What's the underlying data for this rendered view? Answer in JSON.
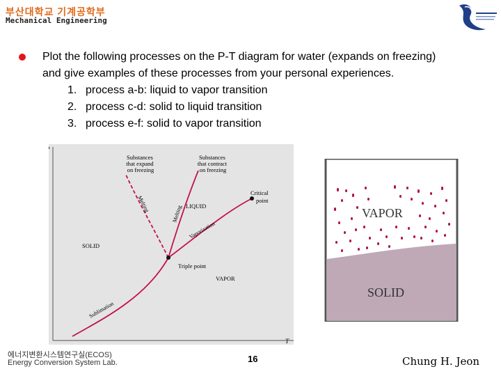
{
  "header": {
    "korean_title": "부산대학교 기계공학부",
    "english_title": "Mechanical Engineering"
  },
  "main": {
    "intro_line1": "Plot the following processes on the P-T diagram for water (expands on freezing)",
    "intro_line2": "and give examples of these processes from your personal experiences.",
    "items": [
      {
        "num": "1.",
        "text": "process a-b: liquid to vapor transition"
      },
      {
        "num": "2.",
        "text": "process c-d: solid to liquid transition"
      },
      {
        "num": "3.",
        "text": "process e-f: solid to vapor transition"
      }
    ]
  },
  "diagram": {
    "axis_p": "P",
    "axis_t": "T",
    "expand_note": [
      "Substances",
      "that expand",
      "on freezing"
    ],
    "contract_note": [
      "Substances",
      "that contract",
      "on freezing"
    ],
    "critical_label": [
      "Critical",
      "point"
    ],
    "triple_label": "Triple point",
    "region_solid": "SOLID",
    "region_liquid": "LIQUID",
    "region_vapor": "VAPOR",
    "curve_melting_1": "Melting",
    "curve_melting_2": "Melting",
    "curve_vaporization": "Vaporization",
    "curve_sublimation": "Sublimation",
    "colors": {
      "background": "#e4e4e4",
      "curve": "#c4114a"
    }
  },
  "illustration": {
    "vapor_label": "VAPOR",
    "solid_label": "SOLID",
    "colors": {
      "solid_fill": "#bfa9b7",
      "dots": "#b0104f"
    }
  },
  "footer": {
    "lab_korean": "에너지변환시스템연구실(ECOS)",
    "lab_english": "Energy Conversion System Lab.",
    "page_number": "16",
    "author": "Chung H. Jeon"
  }
}
